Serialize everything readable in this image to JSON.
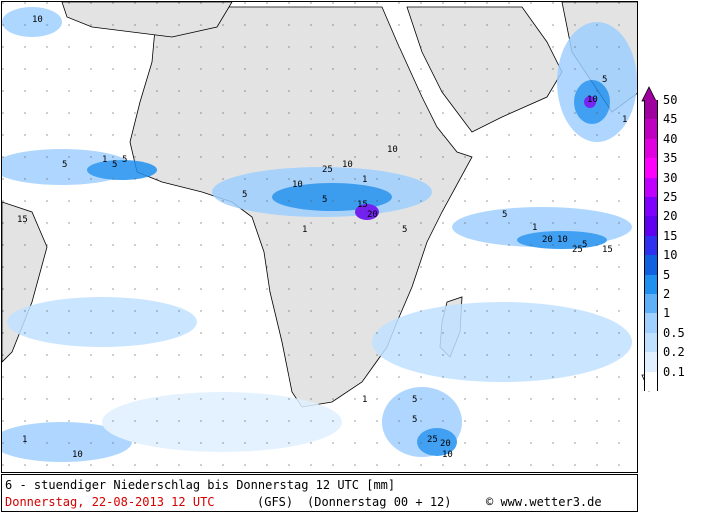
{
  "title": "6 - stuendiger Niederschlag bis Donnerstag 12 UTC [mm]",
  "date_line": "Donnerstag, 22-08-2013  12 UTC",
  "model": "(GFS)",
  "run": "(Donnerstag 00 + 12)",
  "credit": "© www.wetter3.de",
  "colors": {
    "land": "#e3e3e3",
    "sea": "#ffffff",
    "date_text": "#d40000"
  },
  "legend": [
    {
      "label": "50",
      "color": "#a000a0"
    },
    {
      "label": "45",
      "color": "#c000c0"
    },
    {
      "label": "40",
      "color": "#e000e0"
    },
    {
      "label": "35",
      "color": "#ff00ff"
    },
    {
      "label": "30",
      "color": "#c000ff"
    },
    {
      "label": "25",
      "color": "#8000ff"
    },
    {
      "label": "20",
      "color": "#6000f0"
    },
    {
      "label": "15",
      "color": "#3030f0"
    },
    {
      "label": "10",
      "color": "#1060e0"
    },
    {
      "label": "5",
      "color": "#2090f0"
    },
    {
      "label": "2",
      "color": "#60b0f8"
    },
    {
      "label": "1",
      "color": "#a0d0ff"
    },
    {
      "label": "0.5",
      "color": "#c0e0ff"
    },
    {
      "label": "0.2",
      "color": "#e0f0ff"
    },
    {
      "label": "0.1",
      "color": "#ffffff"
    }
  ],
  "map_labels": [
    "10",
    "5",
    "1",
    "5",
    "5",
    "10",
    "1",
    "5",
    "10",
    "1",
    "10",
    "5",
    "15",
    "20",
    "5",
    "1",
    "10",
    "5",
    "25",
    "15",
    "20",
    "5",
    "10",
    "1",
    "5",
    "25",
    "20",
    "10",
    "5",
    "1",
    "15",
    "25",
    "10",
    "5",
    "1"
  ]
}
